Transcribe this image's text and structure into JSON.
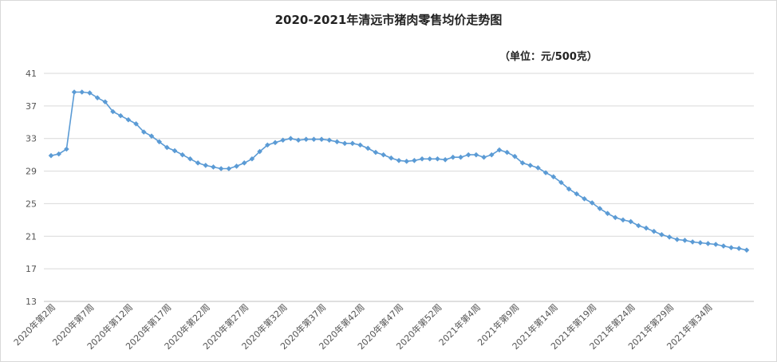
{
  "chart_data": {
    "type": "line",
    "title": "2020-2021年清远市猪肉零售均价走势图",
    "subtitle": "（单位：元/500克）",
    "xlabel": "",
    "ylabel": "",
    "ylim": [
      13,
      41
    ],
    "yticks": [
      13,
      17,
      21,
      25,
      29,
      33,
      37,
      41
    ],
    "grid": true,
    "legend": "none",
    "series_color": "#5b9bd5",
    "x_tick_labels": [
      {
        "index": 0,
        "label": "2020年第2周"
      },
      {
        "index": 5,
        "label": "2020年第7周"
      },
      {
        "index": 10,
        "label": "2020年第12周"
      },
      {
        "index": 15,
        "label": "2020年第17周"
      },
      {
        "index": 20,
        "label": "2020年第22周"
      },
      {
        "index": 25,
        "label": "2020年第27周"
      },
      {
        "index": 30,
        "label": "2020年第32周"
      },
      {
        "index": 35,
        "label": "2020年第37周"
      },
      {
        "index": 40,
        "label": "2020年第42周"
      },
      {
        "index": 45,
        "label": "2020年第47周"
      },
      {
        "index": 50,
        "label": "2020年第52周"
      },
      {
        "index": 55,
        "label": "2021年第4周"
      },
      {
        "index": 60,
        "label": "2021年第9周"
      },
      {
        "index": 65,
        "label": "2021年第14周"
      },
      {
        "index": 70,
        "label": "2021年第19周"
      },
      {
        "index": 75,
        "label": "2021年第24周"
      },
      {
        "index": 80,
        "label": "2021年第29周"
      },
      {
        "index": 85,
        "label": "2021年第34周"
      }
    ],
    "series": [
      {
        "values": [
          30.9,
          31.1,
          31.7,
          38.7,
          38.7,
          38.6,
          38.0,
          37.5,
          36.3,
          35.8,
          35.3,
          34.8,
          33.8,
          33.3,
          32.6,
          31.9,
          31.5,
          31.0,
          30.5,
          30.0,
          29.7,
          29.5,
          29.3,
          29.3,
          29.6,
          30.0,
          30.5,
          31.4,
          32.2,
          32.5,
          32.8,
          33.0,
          32.8,
          32.9,
          32.9,
          32.9,
          32.8,
          32.6,
          32.4,
          32.4,
          32.2,
          31.8,
          31.3,
          31.0,
          30.6,
          30.3,
          30.2,
          30.3,
          30.5,
          30.5,
          30.5,
          30.4,
          30.7,
          30.7,
          31.0,
          31.0,
          30.7,
          31.0,
          31.6,
          31.3,
          30.8,
          30.0,
          29.7,
          29.4,
          28.8,
          28.3,
          27.6,
          26.8,
          26.2,
          25.6,
          25.1,
          24.4,
          23.8,
          23.3,
          23.0,
          22.8,
          22.3,
          22.0,
          21.6,
          21.2,
          20.9,
          20.6,
          20.5,
          20.3,
          20.2,
          20.1,
          20.0,
          19.8,
          19.6,
          19.5,
          19.3
        ]
      }
    ]
  }
}
